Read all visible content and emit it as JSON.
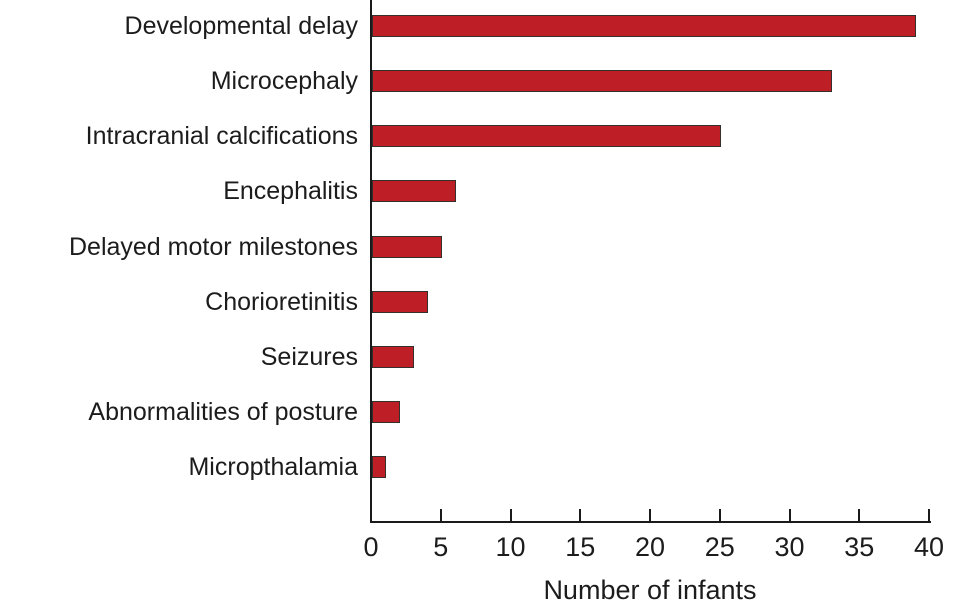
{
  "chart_data": {
    "type": "bar",
    "orientation": "horizontal",
    "title": "",
    "categories": [
      "Developmental delay",
      "Microcephaly",
      "Intracranial calcifications",
      "Encephalitis",
      "Delayed motor milestones",
      "Chorioretinitis",
      "Seizures",
      "Abnormalities of posture",
      "Micropthalamia"
    ],
    "values": [
      39,
      33,
      25,
      6,
      5,
      4,
      3,
      2,
      1
    ],
    "xlabel": "Number of infants",
    "ylabel": "",
    "xlim": [
      0,
      40
    ],
    "xticks": [
      0,
      5,
      10,
      15,
      20,
      25,
      30,
      35,
      40
    ],
    "grid": false,
    "legend": "none",
    "bar_color": "#be1f27",
    "bar_border_color": "#35302c",
    "axis_color": "#1a1a1a",
    "text_color": "#1c1c1c"
  }
}
